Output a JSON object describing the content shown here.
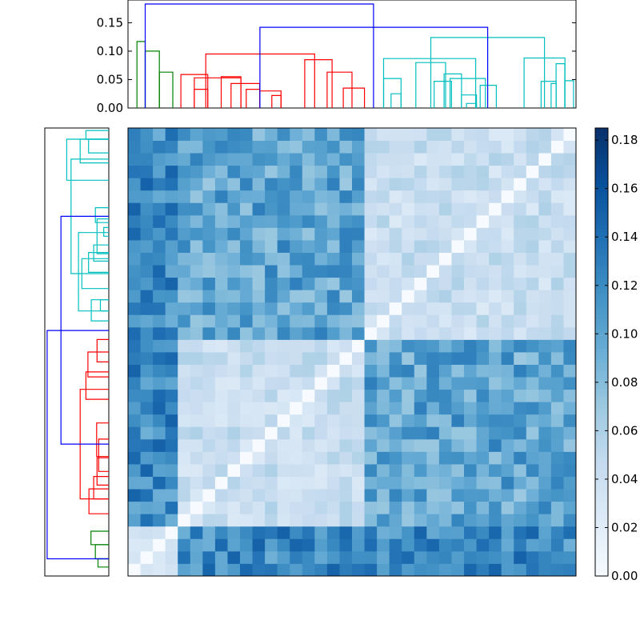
{
  "chart_data": [
    {
      "type": "dendrogram",
      "orientation": "top",
      "ylim": [
        0,
        0.19
      ],
      "yticks": [
        "0.00",
        "0.05",
        "0.10",
        "0.15"
      ],
      "links": [
        {
          "x": [
            0.72,
            0.72,
            1.38,
            1.38
          ],
          "y": [
            0.0,
            0.117,
            0.117,
            0.0
          ],
          "color": "#008000"
        },
        {
          "x": [
            1.38,
            1.38,
            2.52,
            2.52
          ],
          "y": [
            0.0,
            0.1,
            0.1,
            0.0
          ],
          "color": "#008000"
        },
        {
          "x": [
            2.52,
            2.52,
            3.6,
            3.6
          ],
          "y": [
            0.0,
            0.063,
            0.063,
            0.0
          ],
          "color": "#008000"
        },
        {
          "x": [
            4.25,
            4.25,
            6.41,
            6.41
          ],
          "y": [
            0.0,
            0.059,
            0.059,
            0.0
          ],
          "color": "#ff0000"
        },
        {
          "x": [
            5.33,
            5.33,
            6.41,
            6.41
          ],
          "y": [
            0.0,
            0.033,
            0.033,
            0.0
          ],
          "color": "#ff0000"
        },
        {
          "x": [
            5.33,
            5.33,
            9.07,
            9.07
          ],
          "y": [
            0.0,
            0.053,
            0.053,
            0.0
          ],
          "color": "#ff0000"
        },
        {
          "x": [
            7.49,
            7.49,
            9.07,
            9.07
          ],
          "y": [
            0.0,
            0.055,
            0.055,
            0.0
          ],
          "color": "#ff0000"
        },
        {
          "x": [
            8.28,
            8.28,
            10.58,
            10.58
          ],
          "y": [
            0.0,
            0.043,
            0.043,
            0.0
          ],
          "color": "#ff0000"
        },
        {
          "x": [
            9.5,
            9.5,
            10.58,
            10.58
          ],
          "y": [
            0.0,
            0.033,
            0.033,
            0.0
          ],
          "color": "#ff0000"
        },
        {
          "x": [
            10.58,
            10.58,
            12.3,
            12.3
          ],
          "y": [
            0.0,
            0.03,
            0.03,
            0.0
          ],
          "color": "#ff0000"
        },
        {
          "x": [
            11.56,
            11.56,
            12.3,
            12.3
          ],
          "y": [
            0.0,
            0.022,
            0.022,
            0.0
          ],
          "color": "#ff0000"
        },
        {
          "x": [
            6.25,
            6.25,
            15.0,
            15.0
          ],
          "y": [
            0.0,
            0.095,
            0.095,
            0.0
          ],
          "color": "#ff0000"
        },
        {
          "x": [
            14.2,
            14.2,
            16.4,
            16.4
          ],
          "y": [
            0.0,
            0.085,
            0.085,
            0.0
          ],
          "color": "#ff0000"
        },
        {
          "x": [
            16.0,
            16.0,
            18.0,
            18.0
          ],
          "y": [
            0.0,
            0.063,
            0.063,
            0.0
          ],
          "color": "#ff0000"
        },
        {
          "x": [
            17.3,
            17.3,
            19.0,
            19.0
          ],
          "y": [
            0.0,
            0.035,
            0.035,
            0.0
          ],
          "color": "#ff0000"
        },
        {
          "x": [
            20.54,
            20.54,
            27.94,
            27.94
          ],
          "y": [
            0.0,
            0.087,
            0.087,
            0.0
          ],
          "color": "#00bfbf"
        },
        {
          "x": [
            20.54,
            20.54,
            21.94,
            21.94
          ],
          "y": [
            0.0,
            0.052,
            0.052,
            0.0
          ],
          "color": "#00bfbf"
        },
        {
          "x": [
            21.14,
            21.14,
            21.94,
            21.94
          ],
          "y": [
            0.0,
            0.025,
            0.025,
            0.0
          ],
          "color": "#00bfbf"
        },
        {
          "x": [
            23.13,
            23.13,
            25.52,
            25.52
          ],
          "y": [
            0.0,
            0.08,
            0.08,
            0.0
          ],
          "color": "#00bfbf"
        },
        {
          "x": [
            24.6,
            24.6,
            26.0,
            26.0
          ],
          "y": [
            0.0,
            0.047,
            0.047,
            0.0
          ],
          "color": "#00bfbf"
        },
        {
          "x": [
            25.4,
            25.4,
            26.8,
            26.8
          ],
          "y": [
            0.0,
            0.06,
            0.06,
            0.0
          ],
          "color": "#00bfbf"
        },
        {
          "x": [
            25.88,
            25.88,
            28.72,
            28.72
          ],
          "y": [
            0.0,
            0.052,
            0.052,
            0.0
          ],
          "color": "#00bfbf"
        },
        {
          "x": [
            28.3,
            28.3,
            29.6,
            29.6
          ],
          "y": [
            0.0,
            0.04,
            0.04,
            0.0
          ],
          "color": "#00bfbf"
        },
        {
          "x": [
            26.8,
            26.8,
            28.0,
            28.0
          ],
          "y": [
            0.0,
            0.023,
            0.023,
            0.0
          ],
          "color": "#00bfbf"
        },
        {
          "x": [
            27.2,
            27.2,
            28.0,
            28.0
          ],
          "y": [
            0.0,
            0.008,
            0.008,
            0.0
          ],
          "color": "#00bfbf"
        },
        {
          "x": [
            24.33,
            24.33,
            33.47,
            33.47
          ],
          "y": [
            0.0,
            0.124,
            0.124,
            0.0
          ],
          "color": "#00bfbf"
        },
        {
          "x": [
            31.83,
            31.83,
            35.11,
            35.11
          ],
          "y": [
            0.0,
            0.088,
            0.088,
            0.0
          ],
          "color": "#00bfbf"
        },
        {
          "x": [
            34.4,
            34.4,
            35.1,
            35.1
          ],
          "y": [
            0.0,
            0.078,
            0.078,
            0.0
          ],
          "color": "#00bfbf"
        },
        {
          "x": [
            33.2,
            33.2,
            34.4,
            34.4
          ],
          "y": [
            0.0,
            0.047,
            0.047,
            0.0
          ],
          "color": "#00bfbf"
        },
        {
          "x": [
            34.0,
            34.0,
            34.4,
            34.4
          ],
          "y": [
            0.0,
            0.043,
            0.043,
            0.0
          ],
          "color": "#00bfbf"
        },
        {
          "x": [
            35.1,
            35.1,
            35.8,
            35.8
          ],
          "y": [
            0.0,
            0.048,
            0.048,
            0.0
          ],
          "color": "#00bfbf"
        },
        {
          "x": [
            10.6,
            10.6,
            28.9,
            28.9
          ],
          "y": [
            0.0,
            0.142,
            0.142,
            0.0
          ],
          "color": "#0000ff"
        },
        {
          "x": [
            1.38,
            1.38,
            19.73,
            19.73
          ],
          "y": [
            0.0,
            0.183,
            0.183,
            0.0
          ],
          "color": "#0000ff"
        }
      ],
      "xlim": [
        0,
        36
      ]
    },
    {
      "type": "dendrogram",
      "orientation": "left",
      "xlim": [
        0.19,
        0
      ],
      "links": [
        {
          "y": [
            0.72,
            0.72,
            1.38,
            1.38
          ],
          "x": [
            0.0,
            0.032,
            0.032,
            0.0
          ],
          "color": "#008000"
        },
        {
          "y": [
            1.38,
            1.38,
            2.52,
            2.52
          ],
          "x": [
            0.0,
            0.04,
            0.04,
            0.0
          ],
          "color": "#008000"
        },
        {
          "y": [
            2.52,
            2.52,
            3.6,
            3.6
          ],
          "x": [
            0.0,
            0.053,
            0.053,
            0.0
          ],
          "color": "#008000"
        },
        {
          "y": [
            5.0,
            5.0,
            7.0,
            7.0
          ],
          "x": [
            0.0,
            0.059,
            0.059,
            0.0
          ],
          "color": "#ff0000"
        },
        {
          "y": [
            6.2,
            6.2,
            8.0,
            8.0
          ],
          "x": [
            0.0,
            0.045,
            0.045,
            0.0
          ],
          "color": "#ff0000"
        },
        {
          "y": [
            7.3,
            7.3,
            9.5,
            9.5
          ],
          "x": [
            0.0,
            0.035,
            0.035,
            0.0
          ],
          "color": "#ff0000"
        },
        {
          "y": [
            8.4,
            8.4,
            11.0,
            11.0
          ],
          "x": [
            0.0,
            0.03,
            0.03,
            0.0
          ],
          "color": "#ff0000"
        },
        {
          "y": [
            9.6,
            9.6,
            12.3,
            12.3
          ],
          "x": [
            0.0,
            0.036,
            0.036,
            0.0
          ],
          "color": "#ff0000"
        },
        {
          "y": [
            6.2,
            6.2,
            15.0,
            15.0
          ],
          "x": [
            0.0,
            0.085,
            0.085,
            0.0
          ],
          "color": "#ff0000"
        },
        {
          "y": [
            14.2,
            14.2,
            16.4,
            16.4
          ],
          "x": [
            0.0,
            0.068,
            0.068,
            0.0
          ],
          "color": "#ff0000"
        },
        {
          "y": [
            16.0,
            16.0,
            18.0,
            18.0
          ],
          "x": [
            0.0,
            0.062,
            0.062,
            0.0
          ],
          "color": "#ff0000"
        },
        {
          "y": [
            17.2,
            17.2,
            19.0,
            19.0
          ],
          "x": [
            0.0,
            0.035,
            0.035,
            0.0
          ],
          "color": "#ff0000"
        },
        {
          "y": [
            20.5,
            20.5,
            22.2,
            22.2
          ],
          "x": [
            0.0,
            0.052,
            0.052,
            0.0
          ],
          "color": "#00bfbf"
        },
        {
          "y": [
            21.3,
            21.3,
            22.2,
            22.2
          ],
          "x": [
            0.0,
            0.025,
            0.025,
            0.0
          ],
          "color": "#00bfbf"
        },
        {
          "y": [
            21.3,
            21.3,
            27.6,
            27.6
          ],
          "x": [
            0.0,
            0.09,
            0.09,
            0.0
          ],
          "color": "#00bfbf"
        },
        {
          "y": [
            23.1,
            23.1,
            25.5,
            25.5
          ],
          "x": [
            0.0,
            0.08,
            0.08,
            0.0
          ],
          "color": "#00bfbf"
        },
        {
          "y": [
            24.4,
            24.4,
            26.0,
            26.0
          ],
          "x": [
            0.0,
            0.06,
            0.06,
            0.0
          ],
          "color": "#00bfbf"
        },
        {
          "y": [
            25.3,
            25.3,
            26.6,
            26.6
          ],
          "x": [
            0.0,
            0.045,
            0.045,
            0.0
          ],
          "color": "#00bfbf"
        },
        {
          "y": [
            25.9,
            25.9,
            28.7,
            28.7
          ],
          "x": [
            0.0,
            0.035,
            0.035,
            0.0
          ],
          "color": "#00bfbf"
        },
        {
          "y": [
            27.3,
            27.3,
            28.0,
            28.0
          ],
          "x": [
            0.0,
            0.015,
            0.015,
            0.0
          ],
          "color": "#00bfbf"
        },
        {
          "y": [
            28.4,
            28.4,
            29.6,
            29.6
          ],
          "x": [
            0.0,
            0.04,
            0.04,
            0.0
          ],
          "color": "#00bfbf"
        },
        {
          "y": [
            24.3,
            24.3,
            33.5,
            33.5
          ],
          "x": [
            0.0,
            0.112,
            0.112,
            0.0
          ],
          "color": "#00bfbf"
        },
        {
          "y": [
            31.8,
            31.8,
            35.1,
            35.1
          ],
          "x": [
            0.0,
            0.125,
            0.125,
            0.0
          ],
          "color": "#00bfbf"
        },
        {
          "y": [
            33.2,
            33.2,
            35.1,
            35.1
          ],
          "x": [
            0.0,
            0.085,
            0.085,
            0.0
          ],
          "color": "#00bfbf"
        },
        {
          "y": [
            34.0,
            34.0,
            35.1,
            35.1
          ],
          "x": [
            0.0,
            0.06,
            0.06,
            0.0
          ],
          "color": "#00bfbf"
        },
        {
          "y": [
            35.1,
            35.1,
            35.8,
            35.8
          ],
          "x": [
            0.0,
            0.068,
            0.068,
            0.0
          ],
          "color": "#00bfbf"
        },
        {
          "y": [
            10.6,
            10.6,
            28.9,
            28.9
          ],
          "x": [
            0.0,
            0.142,
            0.142,
            0.0
          ],
          "color": "#0000ff"
        },
        {
          "y": [
            1.38,
            1.38,
            19.73,
            19.73
          ],
          "x": [
            0.0,
            0.183,
            0.183,
            0.0
          ],
          "color": "#0000ff"
        }
      ],
      "ylim": [
        0,
        36
      ]
    },
    {
      "type": "heatmap",
      "rows": 36,
      "cols": 36,
      "colormap": "Blues",
      "clim": [
        0.0,
        0.185
      ],
      "cluster_sizes": [
        4,
        15,
        17
      ],
      "within_cluster_value": 0.025,
      "between_cluster_value": {
        "0-1": 0.12,
        "0-2": 0.12,
        "1-2": 0.1
      },
      "matrix_description_note": ""
    },
    {
      "type": "colorbar",
      "colormap": "Blues",
      "clim": [
        0.0,
        0.185
      ],
      "ticks": [
        "0.00",
        "0.02",
        "0.04",
        "0.06",
        "0.08",
        "0.10",
        "0.12",
        "0.14",
        "0.16",
        "0.18"
      ]
    }
  ]
}
